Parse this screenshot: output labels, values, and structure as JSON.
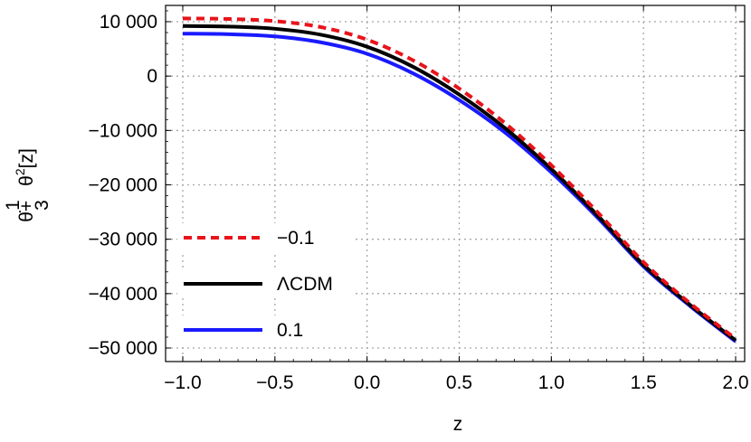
{
  "chart_data": {
    "type": "line",
    "title": "",
    "xlabel": "z",
    "ylabel": {
      "main": "θ̇+",
      "fraction_numerator": "1",
      "fraction_denominator": "3",
      "term": "θ",
      "exponent": "2",
      "argument": "[z]"
    },
    "xlim": [
      -1.0,
      2.0
    ],
    "ylim": [
      -51000,
      12500
    ],
    "grid": true,
    "legend_position": "left",
    "x_ticks": [
      {
        "value": -1.0,
        "label": "−1.0"
      },
      {
        "value": -0.5,
        "label": "−0.5"
      },
      {
        "value": 0.0,
        "label": "0.0"
      },
      {
        "value": 0.5,
        "label": "0.5"
      },
      {
        "value": 1.0,
        "label": "1.0"
      },
      {
        "value": 1.5,
        "label": "1.5"
      },
      {
        "value": 2.0,
        "label": "2.0"
      }
    ],
    "y_ticks": [
      {
        "value": 10000,
        "label": "10 000"
      },
      {
        "value": 0,
        "label": "0"
      },
      {
        "value": -10000,
        "label": "−10 000"
      },
      {
        "value": -20000,
        "label": "−20 000"
      },
      {
        "value": -30000,
        "label": "−30 000"
      },
      {
        "value": -40000,
        "label": "−40 000"
      },
      {
        "value": -50000,
        "label": "−50 000"
      }
    ],
    "series": [
      {
        "name": "−0.1",
        "color": "#e8141b",
        "style": "dashed",
        "x": [
          -1.0,
          -0.75,
          -0.5,
          -0.25,
          0.0,
          0.25,
          0.5,
          0.75,
          1.0,
          1.25,
          1.5,
          1.75,
          2.0
        ],
        "y": [
          10600,
          10500,
          10100,
          9000,
          6700,
          2900,
          -2300,
          -8700,
          -16400,
          -25000,
          -34200,
          -41700,
          -48300
        ]
      },
      {
        "name": "ΛCDM",
        "color": "#000000",
        "style": "solid",
        "x": [
          -1.0,
          -0.75,
          -0.5,
          -0.25,
          0.0,
          0.25,
          0.5,
          0.75,
          1.0,
          1.25,
          1.5,
          1.75,
          2.0
        ],
        "y": [
          9200,
          9100,
          8700,
          7600,
          5400,
          1700,
          -3400,
          -9600,
          -17100,
          -25600,
          -34700,
          -42000,
          -48600
        ]
      },
      {
        "name": "0.1",
        "color": "#1a1aff",
        "style": "solid",
        "x": [
          -1.0,
          -0.75,
          -0.5,
          -0.25,
          0.0,
          0.25,
          0.5,
          0.75,
          1.0,
          1.25,
          1.5,
          1.75,
          2.0
        ],
        "y": [
          7800,
          7700,
          7300,
          6200,
          4100,
          500,
          -4400,
          -10400,
          -17700,
          -26000,
          -35000,
          -42200,
          -48800
        ]
      }
    ]
  }
}
